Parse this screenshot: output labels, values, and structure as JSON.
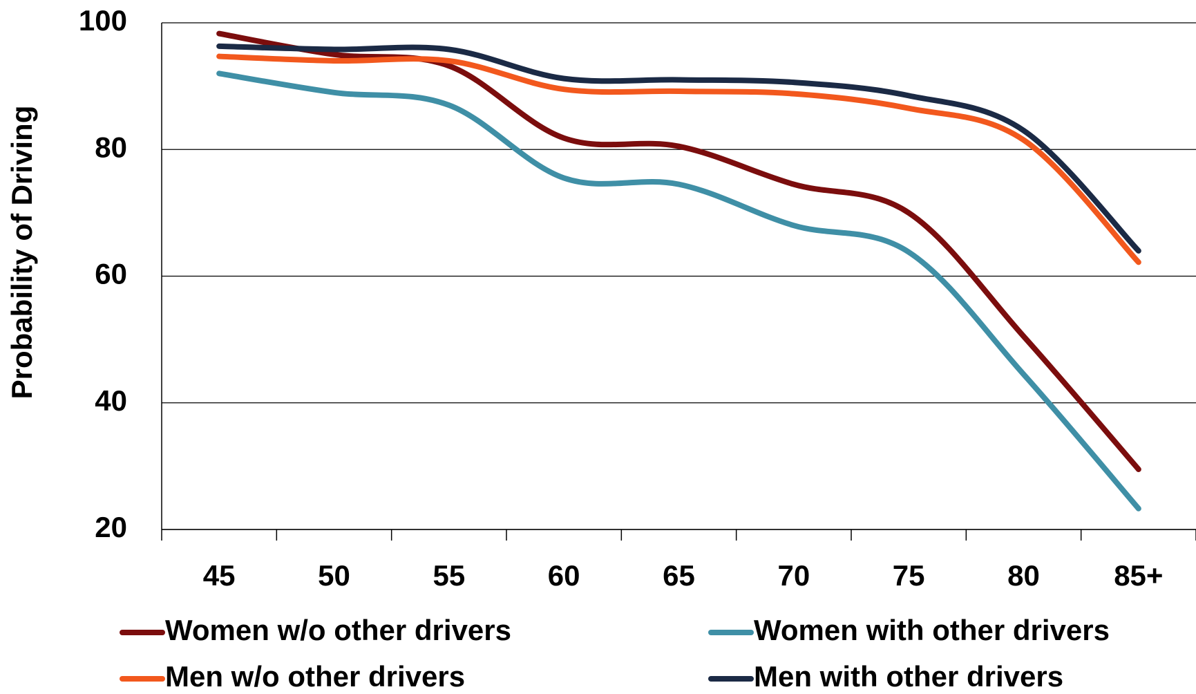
{
  "chart_data": {
    "type": "line",
    "ylabel": "Probability of Driving",
    "categories": [
      "45",
      "50",
      "55",
      "60",
      "65",
      "70",
      "75",
      "80",
      "85+"
    ],
    "series": [
      {
        "name": "Women w/o other drivers",
        "color": "#7b0d0d",
        "values": [
          98.3,
          95,
          93.2,
          81.8,
          80.5,
          74.5,
          70,
          50.5,
          29.5
        ]
      },
      {
        "name": "Women with other drivers",
        "color": "#3f8fa6",
        "values": [
          92,
          89,
          87,
          75.5,
          74.5,
          68,
          63.8,
          44.5,
          23.3
        ]
      },
      {
        "name": "Men w/o other drivers",
        "color": "#f2581d",
        "values": [
          94.7,
          94,
          94,
          89.5,
          89.2,
          88.8,
          86.5,
          81.5,
          62.2
        ]
      },
      {
        "name": "Men with other drivers",
        "color": "#1b2a45",
        "values": [
          96.3,
          95.8,
          95.8,
          91.2,
          91,
          90.6,
          88.5,
          83,
          64
        ]
      }
    ],
    "ylim": [
      20,
      100
    ],
    "yticks": [
      20,
      40,
      60,
      80,
      100
    ],
    "grid": true,
    "legend": "bottom"
  }
}
